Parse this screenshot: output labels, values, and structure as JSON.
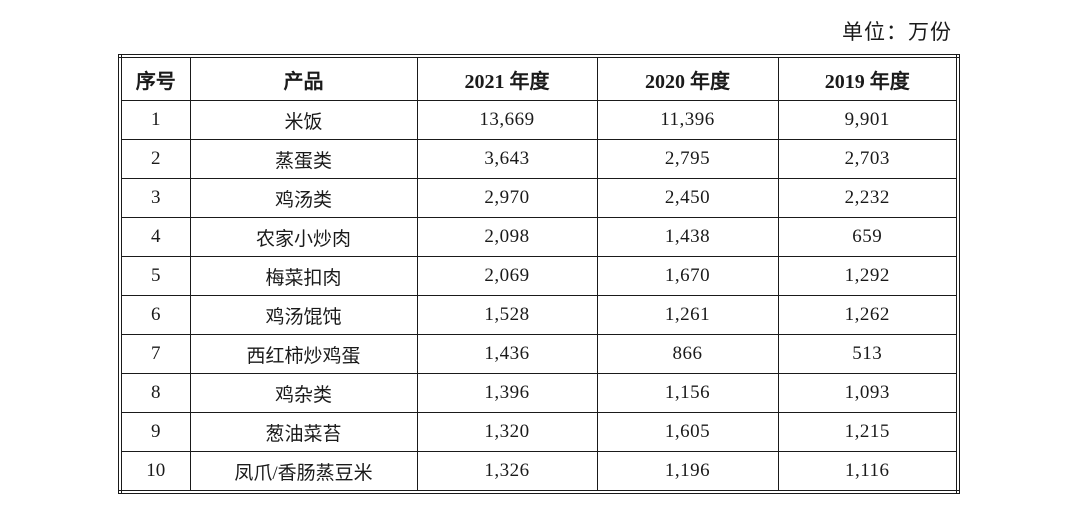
{
  "page": {
    "unit_label": "单位：万份"
  },
  "table": {
    "columns": [
      "序号",
      "产品",
      "2021 年度",
      "2020 年度",
      "2019 年度"
    ],
    "rows": [
      {
        "no": "1",
        "product": "米饭",
        "y2021": "13,669",
        "y2020": "11,396",
        "y2019": "9,901"
      },
      {
        "no": "2",
        "product": "蒸蛋类",
        "y2021": "3,643",
        "y2020": "2,795",
        "y2019": "2,703"
      },
      {
        "no": "3",
        "product": "鸡汤类",
        "y2021": "2,970",
        "y2020": "2,450",
        "y2019": "2,232"
      },
      {
        "no": "4",
        "product": "农家小炒肉",
        "y2021": "2,098",
        "y2020": "1,438",
        "y2019": "659"
      },
      {
        "no": "5",
        "product": "梅菜扣肉",
        "y2021": "2,069",
        "y2020": "1,670",
        "y2019": "1,292"
      },
      {
        "no": "6",
        "product": "鸡汤馄饨",
        "y2021": "1,528",
        "y2020": "1,261",
        "y2019": "1,262"
      },
      {
        "no": "7",
        "product": "西红柿炒鸡蛋",
        "y2021": "1,436",
        "y2020": "866",
        "y2019": "513"
      },
      {
        "no": "8",
        "product": "鸡杂类",
        "y2021": "1,396",
        "y2020": "1,156",
        "y2019": "1,093"
      },
      {
        "no": "9",
        "product": "葱油菜苔",
        "y2021": "1,320",
        "y2020": "1,605",
        "y2019": "1,215"
      },
      {
        "no": "10",
        "product": "凤爪/香肠蒸豆米",
        "y2021": "1,326",
        "y2020": "1,196",
        "y2019": "1,116"
      }
    ]
  },
  "colors": {
    "text": "#1a1a1a",
    "border": "#1a1a1a",
    "background": "#ffffff"
  }
}
